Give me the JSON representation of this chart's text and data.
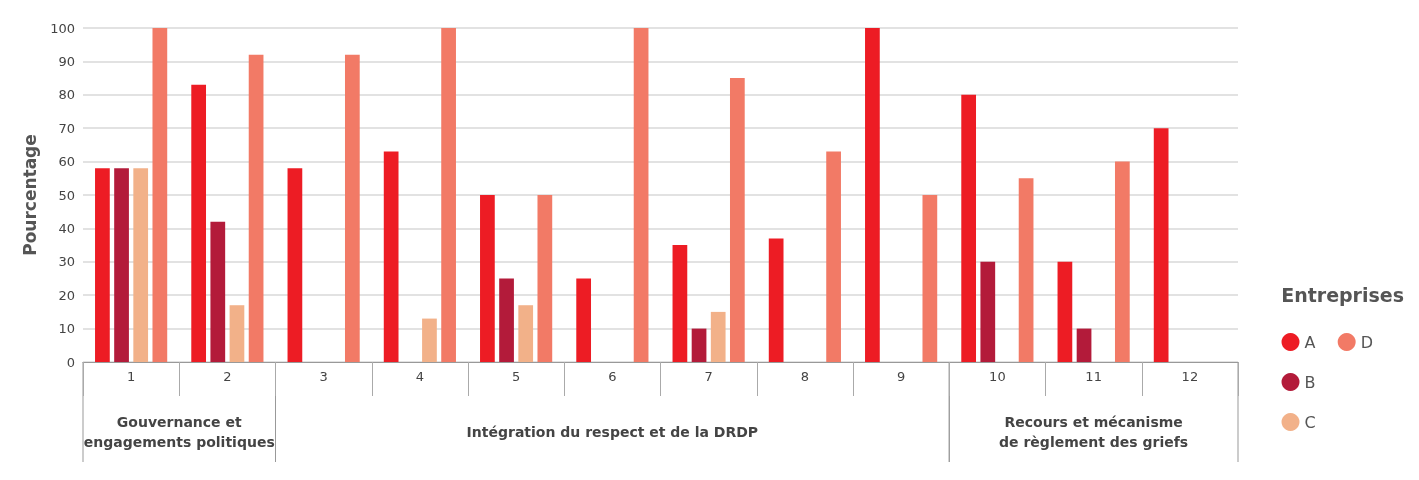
{
  "chart_data": {
    "type": "bar",
    "categories": [
      "1",
      "2",
      "3",
      "4",
      "5",
      "6",
      "7",
      "8",
      "9",
      "10",
      "11",
      "12"
    ],
    "series": [
      {
        "name": "A",
        "color": "#ed1c24",
        "values": [
          58,
          83,
          58,
          63,
          50,
          25,
          35,
          37,
          100,
          80,
          30,
          70
        ]
      },
      {
        "name": "B",
        "color": "#b31b3a",
        "values": [
          58,
          42,
          null,
          null,
          25,
          null,
          10,
          null,
          null,
          30,
          10,
          null
        ]
      },
      {
        "name": "C",
        "color": "#f2b189",
        "values": [
          58,
          17,
          null,
          13,
          17,
          null,
          15,
          null,
          null,
          null,
          null,
          null
        ]
      },
      {
        "name": "D",
        "color": "#f27a66",
        "values": [
          100,
          92,
          92,
          100,
          50,
          100,
          85,
          63,
          50,
          55,
          60,
          null
        ]
      }
    ],
    "ylabel": "Pourcentage",
    "legend_title": "Entreprises",
    "legend": "right",
    "marker": "circle",
    "ylim": [
      0,
      100
    ],
    "yticks": [
      0,
      10,
      20,
      30,
      40,
      50,
      60,
      70,
      80,
      90,
      100
    ],
    "grid": "y",
    "annotations": [
      "Gouvernance et\nengagements politiques",
      "Intégration du respect et de la DRDP",
      "Recours et mécanisme\nde règlement des griefs"
    ]
  }
}
